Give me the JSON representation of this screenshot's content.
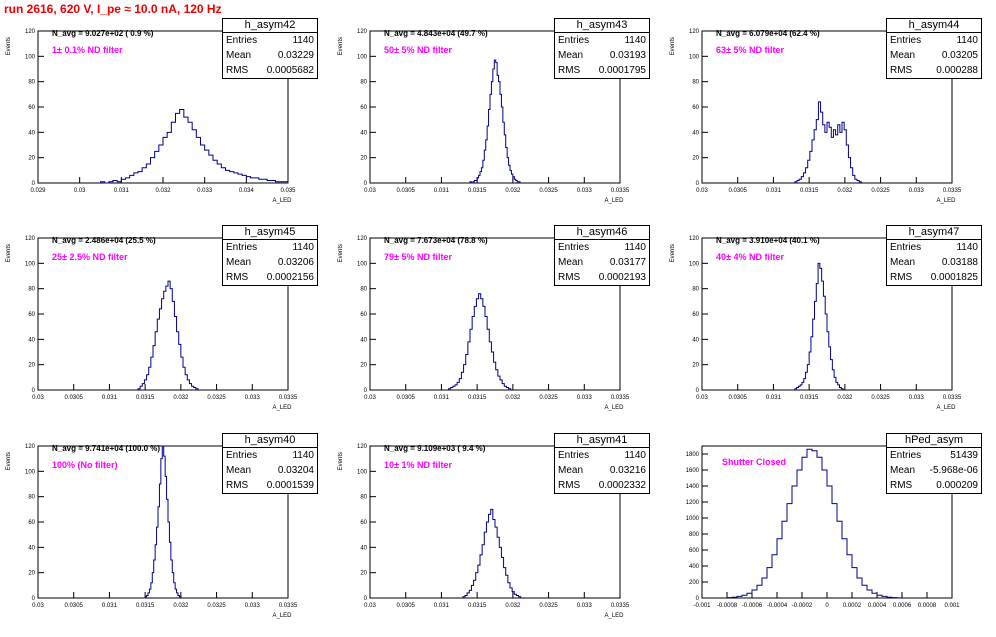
{
  "title": "run 2616,   620 V, I_pe ≈ 10.0 nA, 120 Hz",
  "colors": {
    "title": "#e00000",
    "hist": "#00008b",
    "annotation": "#ff00ff",
    "axis": "#000000"
  },
  "chart_data": [
    {
      "type": "bar",
      "name": "h_asym42",
      "entries": "1140",
      "mean": "0.03229",
      "rms": "0.0005682",
      "navg": "N_avg = 9.027e+02 ( 0.9 %)",
      "filter": "1± 0.1% ND filter",
      "xlim": [
        0.029,
        0.035
      ],
      "ylim": [
        0,
        120
      ],
      "xticks": [
        "0.029",
        "0.03",
        "0.031",
        "0.032",
        "0.033",
        "0.034",
        "0.035"
      ],
      "yticks": [
        "0",
        "20",
        "40",
        "60",
        "80",
        "100",
        "120"
      ],
      "xlabel": "A_LED",
      "ylabel": "Events",
      "bins": {
        "lo": 0.0305,
        "w": 0.0001,
        "values": [
          1,
          0,
          1,
          2,
          1,
          3,
          4,
          6,
          8,
          9,
          12,
          15,
          20,
          25,
          30,
          36,
          40,
          48,
          55,
          58,
          52,
          48,
          42,
          36,
          30,
          26,
          22,
          18,
          15,
          12,
          10,
          9,
          8,
          7,
          6,
          5,
          4,
          4,
          3,
          3,
          2,
          2,
          1,
          1,
          1
        ]
      }
    },
    {
      "type": "bar",
      "name": "h_asym43",
      "entries": "1140",
      "mean": "0.03193",
      "rms": "0.0001795",
      "navg": "N_avg = 4.843e+04 (49.7 %)",
      "filter": "50± 5% ND filter",
      "xlim": [
        0.03,
        0.0335
      ],
      "ylim": [
        0,
        120
      ],
      "xticks": [
        "0.03",
        "0.0305",
        "0.031",
        "0.0315",
        "0.032",
        "0.0325",
        "0.033",
        "0.0335"
      ],
      "yticks": [
        "0",
        "20",
        "40",
        "60",
        "80",
        "100",
        "120"
      ],
      "xlabel": "A_LED",
      "ylabel": "Events",
      "bins": {
        "lo": 0.0314,
        "w": 2e-05,
        "values": [
          1,
          0,
          1,
          2,
          2,
          4,
          6,
          9,
          12,
          18,
          26,
          34,
          45,
          58,
          70,
          80,
          90,
          97,
          95,
          85,
          80,
          70,
          60,
          48,
          38,
          28,
          20,
          14,
          10,
          7,
          5,
          3,
          2,
          1,
          1
        ]
      }
    },
    {
      "type": "bar",
      "name": "h_asym44",
      "entries": "1140",
      "mean": "0.03205",
      "rms": "0.000288",
      "navg": "N_avg = 6.079e+04 (62.4 %)",
      "filter": "63± 5% ND filter",
      "xlim": [
        0.03,
        0.0335
      ],
      "ylim": [
        0,
        120
      ],
      "xticks": [
        "0.03",
        "0.0305",
        "0.031",
        "0.0315",
        "0.032",
        "0.0325",
        "0.033",
        "0.0335"
      ],
      "yticks": [
        "0",
        "20",
        "40",
        "60",
        "80",
        "100",
        "120"
      ],
      "xlabel": "A_LED",
      "ylabel": "Events",
      "bins": {
        "lo": 0.0313,
        "w": 3e-05,
        "values": [
          1,
          2,
          3,
          5,
          8,
          12,
          18,
          25,
          34,
          42,
          50,
          64,
          56,
          46,
          40,
          48,
          44,
          36,
          42,
          38,
          46,
          40,
          48,
          42,
          30,
          20,
          12,
          6,
          3,
          2,
          1
        ]
      }
    },
    {
      "type": "bar",
      "name": "h_asym45",
      "entries": "1140",
      "mean": "0.03206",
      "rms": "0.0002156",
      "navg": "N_avg = 2.486e+04 (25.5 %)",
      "filter": "25± 2.5% ND filter",
      "xlim": [
        0.03,
        0.0335
      ],
      "ylim": [
        0,
        120
      ],
      "xticks": [
        "0.03",
        "0.0305",
        "0.031",
        "0.0315",
        "0.032",
        "0.0325",
        "0.033",
        "0.0335"
      ],
      "yticks": [
        "0",
        "20",
        "40",
        "60",
        "80",
        "100",
        "120"
      ],
      "xlabel": "A_LED",
      "ylabel": "Events",
      "bins": {
        "lo": 0.0314,
        "w": 3e-05,
        "values": [
          1,
          3,
          5,
          8,
          12,
          18,
          26,
          35,
          46,
          56,
          64,
          72,
          78,
          82,
          86,
          80,
          70,
          58,
          46,
          36,
          26,
          18,
          12,
          8,
          5,
          3,
          2,
          1
        ]
      }
    },
    {
      "type": "bar",
      "name": "h_asym46",
      "entries": "1140",
      "mean": "0.03177",
      "rms": "0.0002193",
      "navg": "N_avg = 7.673e+04 (78.8 %)",
      "filter": "79± 5% ND filter",
      "xlim": [
        0.03,
        0.0335
      ],
      "ylim": [
        0,
        120
      ],
      "xticks": [
        "0.03",
        "0.0305",
        "0.031",
        "0.0315",
        "0.032",
        "0.0325",
        "0.033",
        "0.0335"
      ],
      "yticks": [
        "0",
        "20",
        "40",
        "60",
        "80",
        "100",
        "120"
      ],
      "xlabel": "A_LED",
      "ylabel": "Events",
      "bins": {
        "lo": 0.0311,
        "w": 3e-05,
        "values": [
          1,
          2,
          3,
          4,
          6,
          9,
          14,
          20,
          28,
          38,
          48,
          58,
          66,
          72,
          76,
          72,
          66,
          58,
          48,
          38,
          30,
          22,
          16,
          11,
          8,
          5,
          3,
          2,
          1
        ]
      }
    },
    {
      "type": "bar",
      "name": "h_asym47",
      "entries": "1140",
      "mean": "0.03188",
      "rms": "0.0001825",
      "navg": "N_avg = 3.910e+04 (40.1 %)",
      "filter": "40± 4% ND filter",
      "xlim": [
        0.03,
        0.0335
      ],
      "ylim": [
        0,
        120
      ],
      "xticks": [
        "0.03",
        "0.0305",
        "0.031",
        "0.0315",
        "0.032",
        "0.0325",
        "0.033",
        "0.0335"
      ],
      "yticks": [
        "0",
        "20",
        "40",
        "60",
        "80",
        "100",
        "120"
      ],
      "xlabel": "A_LED",
      "ylabel": "Events",
      "bins": {
        "lo": 0.0313,
        "w": 2.5e-05,
        "values": [
          1,
          2,
          3,
          4,
          6,
          9,
          14,
          20,
          30,
          42,
          56,
          70,
          84,
          100,
          96,
          86,
          74,
          60,
          46,
          34,
          24,
          16,
          10,
          6,
          4,
          2,
          1
        ]
      }
    },
    {
      "type": "bar",
      "name": "h_asym40",
      "entries": "1140",
      "mean": "0.03204",
      "rms": "0.0001539",
      "navg": "N_avg = 9.741e+04 (100.0 %)",
      "filter": "100% (No filter)",
      "xlim": [
        0.03,
        0.0335
      ],
      "ylim": [
        0,
        120
      ],
      "xticks": [
        "0.03",
        "0.0305",
        "0.031",
        "0.0315",
        "0.032",
        "0.0325",
        "0.033",
        "0.0335"
      ],
      "yticks": [
        "0",
        "20",
        "40",
        "60",
        "80",
        "100",
        "120"
      ],
      "xlabel": "A_LED",
      "ylabel": "Events",
      "bins": {
        "lo": 0.0315,
        "w": 2e-05,
        "values": [
          1,
          2,
          4,
          7,
          12,
          20,
          30,
          42,
          56,
          72,
          90,
          110,
          124,
          112,
          96,
          78,
          60,
          44,
          30,
          20,
          12,
          7,
          4,
          2,
          1
        ]
      }
    },
    {
      "type": "bar",
      "name": "h_asym41",
      "entries": "1140",
      "mean": "0.03216",
      "rms": "0.0002332",
      "navg": "N_avg = 9.109e+03 ( 9.4 %)",
      "filter": "10± 1% ND filter",
      "xlim": [
        0.03,
        0.0335
      ],
      "ylim": [
        0,
        120
      ],
      "xticks": [
        "0.03",
        "0.0305",
        "0.031",
        "0.0315",
        "0.032",
        "0.0325",
        "0.033",
        "0.0335"
      ],
      "yticks": [
        "0",
        "20",
        "40",
        "60",
        "80",
        "100",
        "120"
      ],
      "xlabel": "A_LED",
      "ylabel": "Events",
      "bins": {
        "lo": 0.0313,
        "w": 3e-05,
        "values": [
          1,
          2,
          4,
          6,
          10,
          14,
          20,
          26,
          34,
          42,
          52,
          60,
          66,
          70,
          62,
          56,
          48,
          40,
          32,
          24,
          18,
          12,
          8,
          5,
          3,
          2,
          1
        ]
      }
    },
    {
      "type": "bar",
      "name": "hPed_asym",
      "entries": "51439",
      "mean": "-5.968e-06",
      "rms": "0.000209",
      "navg": "",
      "filter": "Shutter Closed",
      "xlim": [
        -0.001,
        0.001
      ],
      "ylim": [
        0,
        1900
      ],
      "xticks": [
        "-0.001",
        "-0.0008",
        "-0.0006",
        "-0.0004",
        "-0.0002",
        "0",
        "0.0002",
        "0.0004",
        "0.0006",
        "0.0008",
        "0.001"
      ],
      "yticks": [
        "0",
        "200",
        "400",
        "600",
        "800",
        "1000",
        "1200",
        "1400",
        "1600",
        "1800"
      ],
      "xlabel": "",
      "ylabel": "",
      "bins": {
        "lo": -0.0008,
        "w": 4e-05,
        "values": [
          5,
          10,
          20,
          35,
          60,
          100,
          160,
          250,
          380,
          540,
          740,
          960,
          1180,
          1400,
          1600,
          1760,
          1860,
          1840,
          1760,
          1600,
          1400,
          1180,
          960,
          740,
          540,
          380,
          250,
          160,
          100,
          60,
          35,
          20,
          10,
          5,
          2
        ]
      }
    }
  ]
}
